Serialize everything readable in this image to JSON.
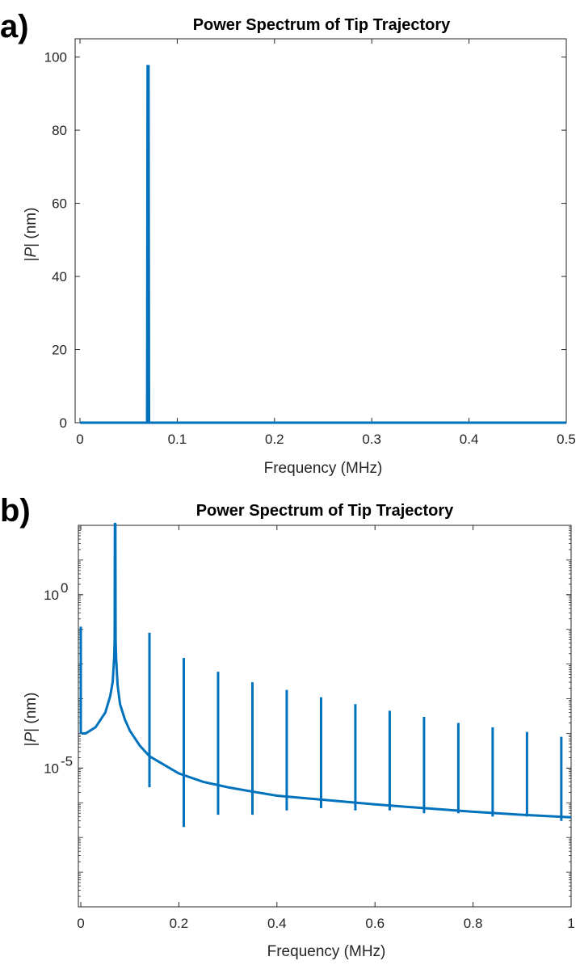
{
  "figure": {
    "panel_a_label": "a)",
    "panel_b_label": "b)"
  },
  "colors": {
    "series": "#0072BD",
    "axis": "#262626",
    "background": "#ffffff"
  },
  "chart_data": [
    {
      "type": "line",
      "panel": "a",
      "title": "Power Spectrum of Tip Trajectory",
      "xlabel": "Frequency (MHz)",
      "ylabel": "|P| (nm)",
      "ylabel_italic_part": "P",
      "xlim": [
        -0.005,
        0.5
      ],
      "ylim": [
        0,
        105
      ],
      "yscale": "linear",
      "xticks": [
        0,
        0.1,
        0.2,
        0.3,
        0.4,
        0.5
      ],
      "xtick_labels": [
        "0",
        "0.1",
        "0.2",
        "0.3",
        "0.4",
        "0.5"
      ],
      "yticks": [
        0,
        20,
        40,
        60,
        80,
        100
      ],
      "ytick_labels": [
        "0",
        "20",
        "40",
        "60",
        "80",
        "100"
      ],
      "grid": false,
      "series": [
        {
          "x": [
            0,
            0.069,
            0.0695,
            0.07,
            0.0705,
            0.071,
            0.5
          ],
          "y": [
            0,
            0,
            97.5,
            97.5,
            97.5,
            0,
            0
          ]
        }
      ]
    },
    {
      "type": "line",
      "panel": "b",
      "title": "Power Spectrum of Tip Trajectory",
      "xlabel": "Frequency (MHz)",
      "ylabel": "|P| (nm)",
      "ylabel_italic_part": "P",
      "xlim": [
        -0.005,
        1.0
      ],
      "ylim": [
        1e-09,
        100.0
      ],
      "yscale": "log",
      "xticks": [
        0,
        0.2,
        0.4,
        0.6,
        0.8,
        1
      ],
      "xtick_labels": [
        "0",
        "0.2",
        "0.4",
        "0.6",
        "0.8",
        "1"
      ],
      "yticks": [
        1,
        1e-05
      ],
      "ytick_labels": [
        {
          "base": "10",
          "exp": "0"
        },
        {
          "base": "10",
          "exp": "-5"
        }
      ],
      "grid": false,
      "series": [
        {
          "baseline": {
            "x": [
              0.001,
              0.01,
              0.03,
              0.05,
              0.06,
              0.065,
              0.068,
              0.069,
              0.0695,
              0.0705,
              0.071,
              0.072,
              0.075,
              0.08,
              0.09,
              0.1,
              0.12,
              0.14,
              0.16,
              0.2,
              0.25,
              0.3,
              0.35,
              0.4,
              0.5,
              0.6,
              0.7,
              0.8,
              0.9,
              1.0
            ],
            "y": [
              0.0001,
              0.0001,
              0.00015,
              0.0004,
              0.0012,
              0.003,
              0.015,
              0.05,
              110,
              110,
              0.05,
              0.015,
              0.0025,
              0.0007,
              0.00025,
              0.00012,
              4.5e-05,
              2.2e-05,
              1.5e-05,
              7e-06,
              4e-06,
              2.8e-06,
              2.1e-06,
              1.6e-06,
              1.2e-06,
              9e-07,
              7e-07,
              5.5e-07,
              4.5e-07,
              3.8e-07
            ]
          },
          "spikes": {
            "x": [
              0.0,
              0.14,
              0.21,
              0.28,
              0.35,
              0.42,
              0.49,
              0.56,
              0.63,
              0.7,
              0.77,
              0.84,
              0.91,
              0.98
            ],
            "y_top": [
              0.12,
              0.08,
              0.015,
              0.006,
              0.003,
              0.0018,
              0.0011,
              0.0007,
              0.00045,
              0.0003,
              0.0002,
              0.00015,
              0.00011,
              8e-05
            ],
            "y_bottom": [
              0.0001,
              2.8e-06,
              2e-07,
              4.5e-07,
              4.5e-07,
              6e-07,
              7e-07,
              6e-07,
              6e-07,
              5e-07,
              5e-07,
              4e-07,
              4e-07,
              3e-07
            ]
          }
        }
      ]
    }
  ]
}
